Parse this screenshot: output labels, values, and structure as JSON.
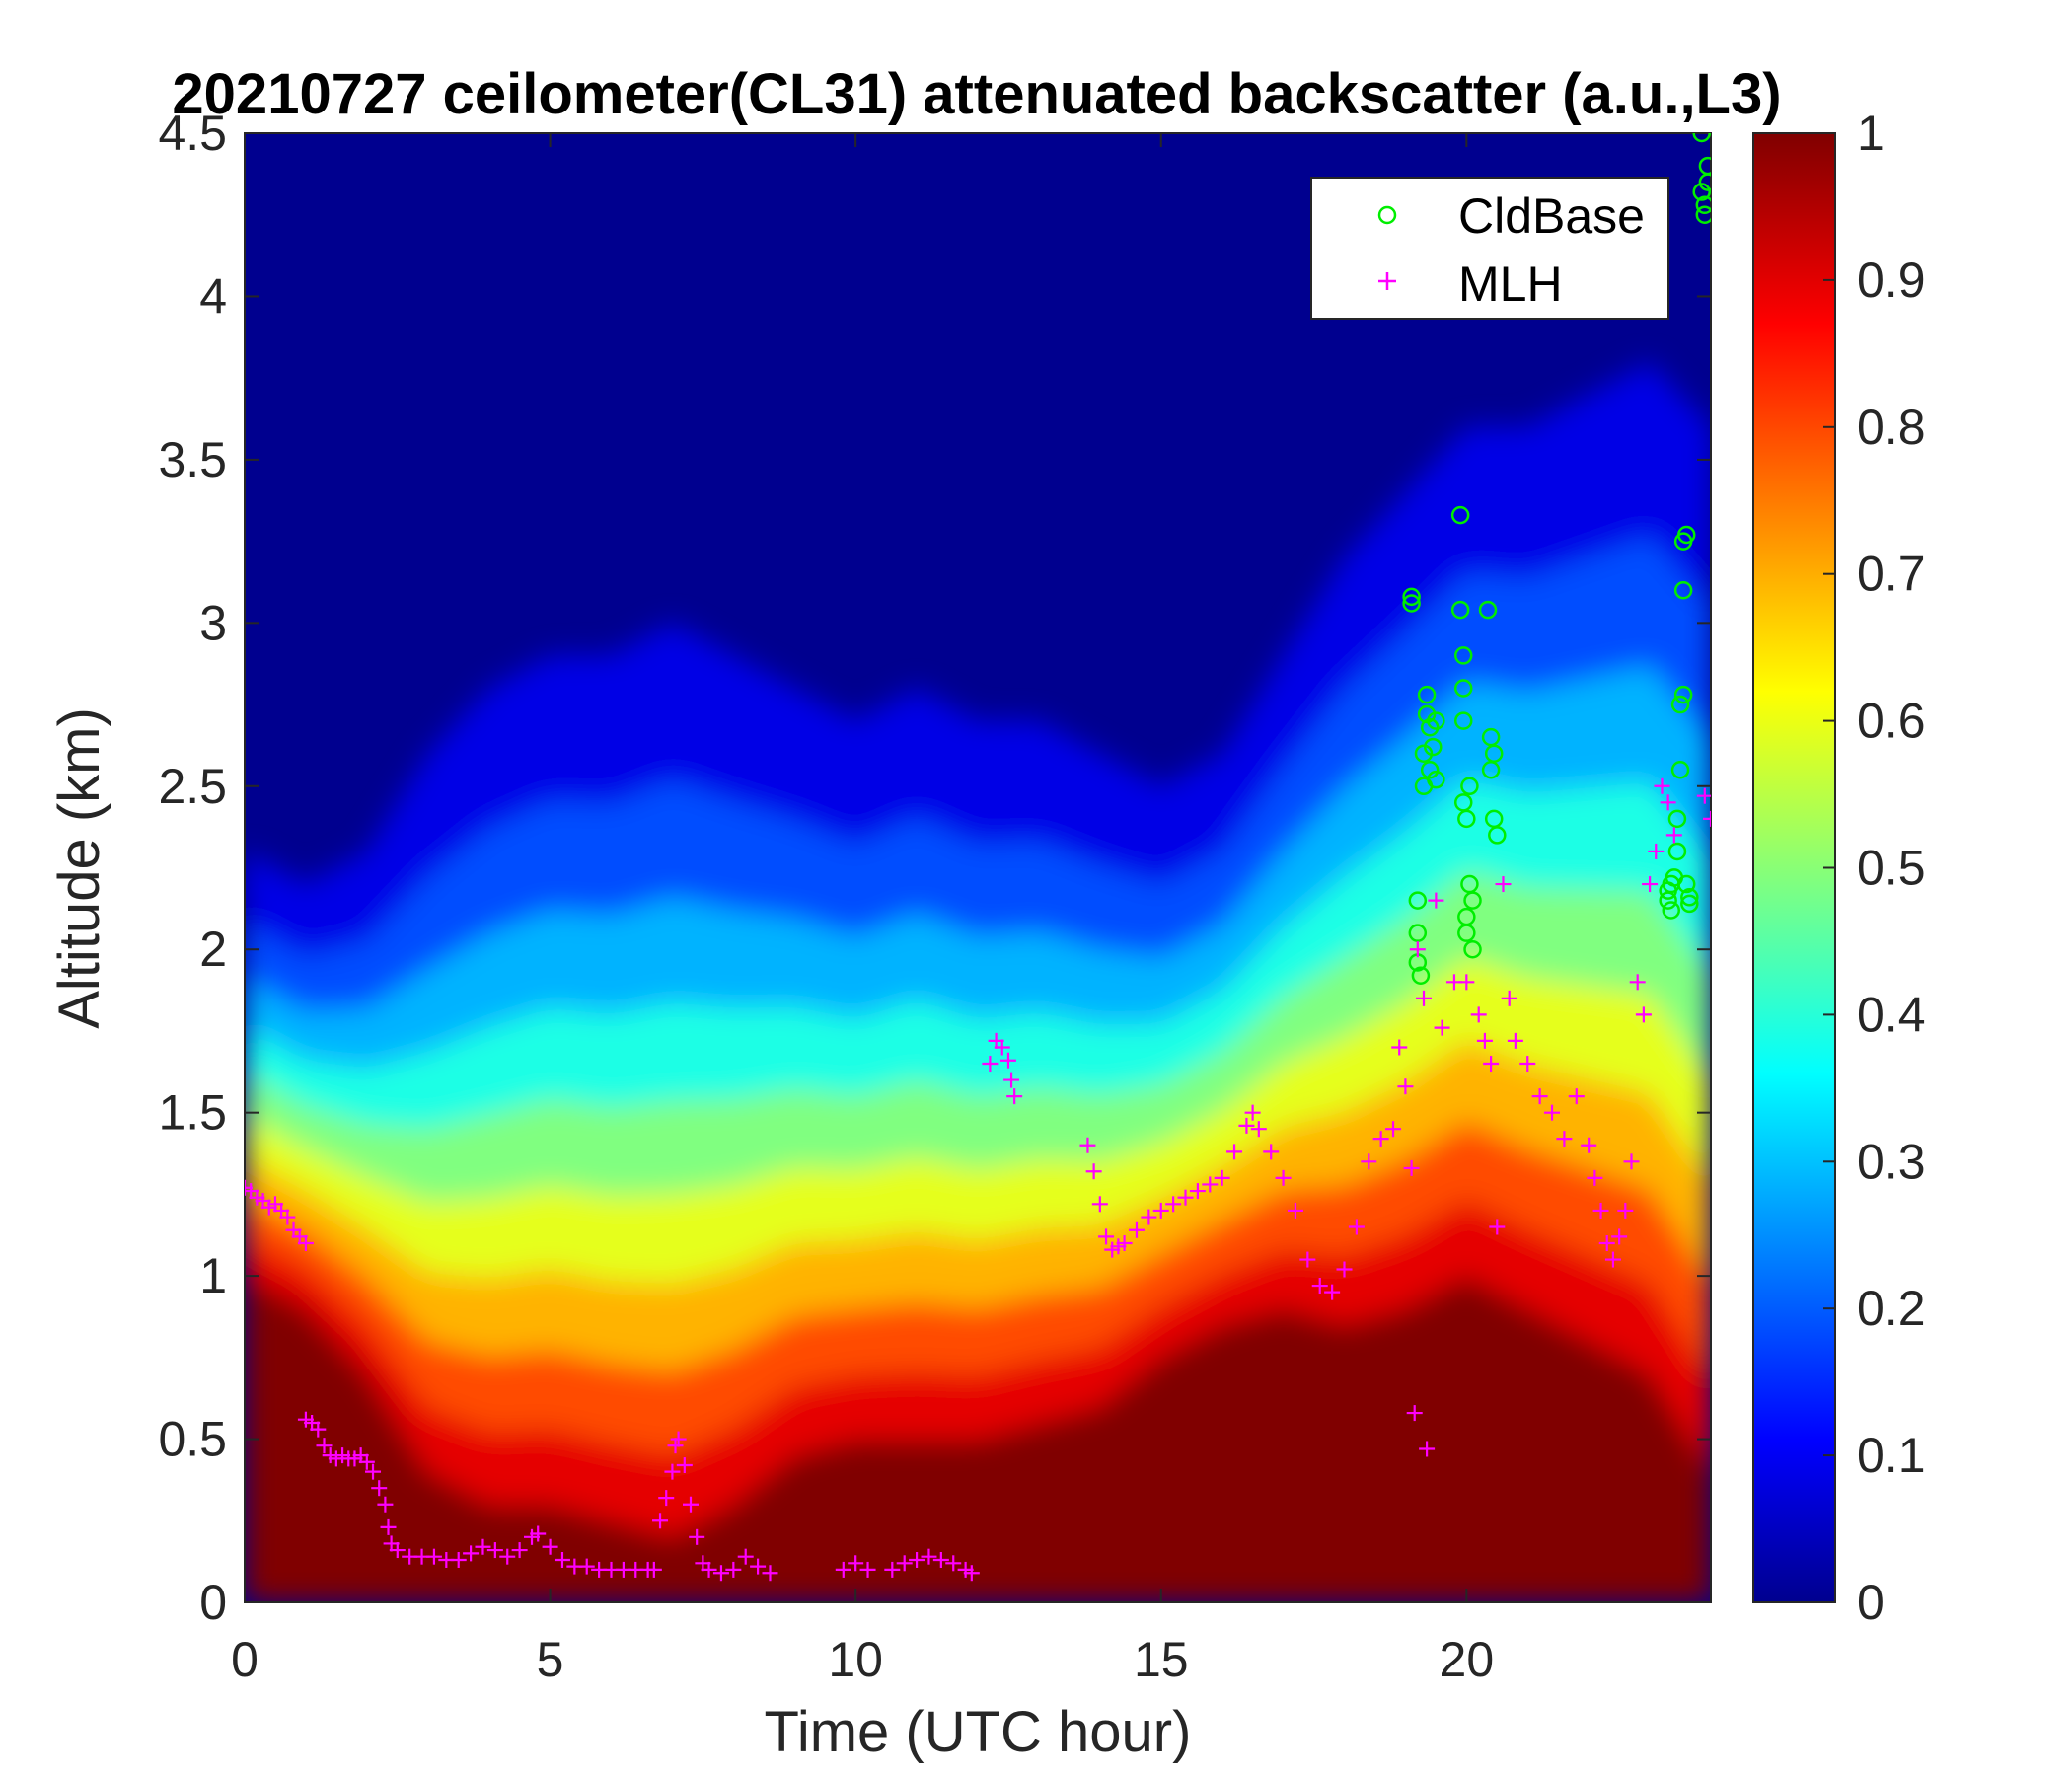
{
  "chart_data": {
    "type": "heatmap",
    "title": "20210727 ceilometer(CL31) attenuated backscatter (a.u.,L3)",
    "xlabel": "Time (UTC hour)",
    "ylabel": "Altitude (km)",
    "xlim": [
      0,
      24
    ],
    "ylim": [
      0,
      4.5
    ],
    "x_ticks": [
      "0",
      "5",
      "10",
      "15",
      "20"
    ],
    "y_ticks": [
      "0",
      "0.5",
      "1",
      "1.5",
      "2",
      "2.5",
      "3",
      "3.5",
      "4",
      "4.5"
    ],
    "colorbar": {
      "colormap": "jet",
      "range": [
        0,
        1
      ],
      "ticks": [
        "0",
        "0.1",
        "0.2",
        "0.3",
        "0.4",
        "0.5",
        "0.6",
        "0.7",
        "0.8",
        "0.9",
        "1"
      ]
    },
    "legend_position": "top-right",
    "backscatter_profile": {
      "description_keys": [
        "t",
        "saturated_top_km",
        "gradient_top_km"
      ],
      "t": [
        0,
        1,
        2,
        3,
        4,
        5,
        6,
        7,
        8,
        9,
        10,
        11,
        12,
        13,
        14,
        15,
        16,
        17,
        18,
        19,
        20,
        21,
        22,
        23,
        24
      ],
      "saturated_top_km": [
        1.0,
        0.9,
        0.7,
        0.4,
        0.3,
        0.3,
        0.25,
        0.2,
        0.3,
        0.45,
        0.5,
        0.5,
        0.5,
        0.55,
        0.6,
        0.75,
        0.85,
        0.9,
        0.85,
        0.9,
        1.0,
        0.9,
        0.8,
        0.7,
        0.4
      ],
      "gradient_top_km": [
        2.3,
        2.2,
        2.3,
        2.6,
        2.8,
        2.9,
        2.9,
        3.0,
        2.9,
        2.8,
        2.7,
        2.8,
        2.7,
        2.7,
        2.6,
        2.5,
        2.6,
        2.9,
        3.2,
        3.4,
        3.6,
        3.6,
        3.7,
        3.8,
        3.6
      ]
    },
    "series": [
      {
        "name": "CldBase",
        "marker": "circle",
        "color": "#00ee00",
        "points": [
          [
            19.1,
            3.08
          ],
          [
            19.1,
            3.06
          ],
          [
            19.2,
            2.15
          ],
          [
            19.2,
            2.05
          ],
          [
            19.2,
            1.96
          ],
          [
            19.25,
            1.92
          ],
          [
            19.3,
            2.5
          ],
          [
            19.3,
            2.6
          ],
          [
            19.35,
            2.72
          ],
          [
            19.35,
            2.78
          ],
          [
            19.4,
            2.68
          ],
          [
            19.4,
            2.55
          ],
          [
            19.45,
            2.62
          ],
          [
            19.5,
            2.52
          ],
          [
            19.5,
            2.7
          ],
          [
            19.9,
            3.33
          ],
          [
            19.9,
            3.04
          ],
          [
            19.95,
            2.9
          ],
          [
            19.95,
            2.8
          ],
          [
            19.95,
            2.7
          ],
          [
            19.95,
            2.45
          ],
          [
            20.0,
            2.4
          ],
          [
            20.0,
            2.1
          ],
          [
            20.0,
            2.05
          ],
          [
            20.05,
            2.5
          ],
          [
            20.05,
            2.2
          ],
          [
            20.1,
            2.15
          ],
          [
            20.1,
            2.0
          ],
          [
            20.35,
            3.04
          ],
          [
            20.4,
            2.65
          ],
          [
            20.4,
            2.55
          ],
          [
            20.45,
            2.6
          ],
          [
            20.45,
            2.4
          ],
          [
            20.5,
            2.35
          ],
          [
            23.3,
            2.18
          ],
          [
            23.3,
            2.15
          ],
          [
            23.35,
            2.2
          ],
          [
            23.35,
            2.12
          ],
          [
            23.4,
            2.22
          ],
          [
            23.45,
            2.3
          ],
          [
            23.45,
            2.4
          ],
          [
            23.5,
            2.55
          ],
          [
            23.5,
            2.75
          ],
          [
            23.55,
            2.78
          ],
          [
            23.55,
            3.1
          ],
          [
            23.55,
            3.25
          ],
          [
            23.6,
            3.27
          ],
          [
            23.6,
            2.2
          ],
          [
            23.65,
            2.16
          ],
          [
            23.65,
            2.14
          ],
          [
            23.85,
            4.5
          ],
          [
            23.85,
            4.32
          ],
          [
            23.9,
            4.28
          ],
          [
            23.9,
            4.25
          ],
          [
            23.95,
            4.4
          ],
          [
            23.95,
            4.35
          ]
        ]
      },
      {
        "name": "MLH",
        "marker": "plus",
        "color": "#ff00ff",
        "points": [
          [
            0.0,
            1.27
          ],
          [
            0.1,
            1.26
          ],
          [
            0.2,
            1.24
          ],
          [
            0.3,
            1.23
          ],
          [
            0.4,
            1.21
          ],
          [
            0.5,
            1.22
          ],
          [
            0.6,
            1.2
          ],
          [
            0.7,
            1.18
          ],
          [
            0.8,
            1.14
          ],
          [
            0.9,
            1.12
          ],
          [
            1.0,
            1.1
          ],
          [
            1.0,
            0.56
          ],
          [
            1.1,
            0.55
          ],
          [
            1.2,
            0.53
          ],
          [
            1.3,
            0.48
          ],
          [
            1.4,
            0.45
          ],
          [
            1.5,
            0.44
          ],
          [
            1.6,
            0.45
          ],
          [
            1.7,
            0.44
          ],
          [
            1.8,
            0.44
          ],
          [
            1.9,
            0.45
          ],
          [
            2.0,
            0.43
          ],
          [
            2.1,
            0.4
          ],
          [
            2.2,
            0.35
          ],
          [
            2.3,
            0.3
          ],
          [
            2.35,
            0.23
          ],
          [
            2.4,
            0.18
          ],
          [
            2.5,
            0.16
          ],
          [
            2.7,
            0.14
          ],
          [
            2.9,
            0.14
          ],
          [
            3.1,
            0.14
          ],
          [
            3.3,
            0.13
          ],
          [
            3.5,
            0.13
          ],
          [
            3.7,
            0.15
          ],
          [
            3.9,
            0.17
          ],
          [
            4.1,
            0.16
          ],
          [
            4.3,
            0.14
          ],
          [
            4.5,
            0.16
          ],
          [
            4.7,
            0.2
          ],
          [
            4.8,
            0.21
          ],
          [
            5.0,
            0.17
          ],
          [
            5.2,
            0.13
          ],
          [
            5.4,
            0.11
          ],
          [
            5.6,
            0.11
          ],
          [
            5.8,
            0.1
          ],
          [
            6.0,
            0.1
          ],
          [
            6.2,
            0.1
          ],
          [
            6.4,
            0.1
          ],
          [
            6.6,
            0.1
          ],
          [
            6.7,
            0.1
          ],
          [
            6.8,
            0.25
          ],
          [
            6.9,
            0.32
          ],
          [
            7.0,
            0.4
          ],
          [
            7.05,
            0.48
          ],
          [
            7.1,
            0.5
          ],
          [
            7.2,
            0.42
          ],
          [
            7.3,
            0.3
          ],
          [
            7.4,
            0.2
          ],
          [
            7.5,
            0.12
          ],
          [
            7.6,
            0.1
          ],
          [
            7.8,
            0.09
          ],
          [
            8.0,
            0.1
          ],
          [
            8.2,
            0.14
          ],
          [
            8.4,
            0.11
          ],
          [
            8.6,
            0.09
          ],
          [
            9.8,
            0.1
          ],
          [
            10.0,
            0.12
          ],
          [
            10.2,
            0.1
          ],
          [
            10.6,
            0.1
          ],
          [
            10.8,
            0.12
          ],
          [
            11.0,
            0.13
          ],
          [
            11.2,
            0.14
          ],
          [
            11.4,
            0.13
          ],
          [
            11.6,
            0.12
          ],
          [
            11.8,
            0.1
          ],
          [
            11.9,
            0.09
          ],
          [
            12.2,
            1.65
          ],
          [
            12.3,
            1.72
          ],
          [
            12.4,
            1.7
          ],
          [
            12.5,
            1.66
          ],
          [
            12.55,
            1.6
          ],
          [
            12.6,
            1.55
          ],
          [
            13.8,
            1.4
          ],
          [
            13.9,
            1.32
          ],
          [
            14.0,
            1.22
          ],
          [
            14.1,
            1.12
          ],
          [
            14.2,
            1.08
          ],
          [
            14.3,
            1.09
          ],
          [
            14.4,
            1.1
          ],
          [
            14.6,
            1.14
          ],
          [
            14.8,
            1.18
          ],
          [
            15.0,
            1.2
          ],
          [
            15.2,
            1.22
          ],
          [
            15.4,
            1.24
          ],
          [
            15.6,
            1.26
          ],
          [
            15.8,
            1.28
          ],
          [
            16.0,
            1.3
          ],
          [
            16.2,
            1.38
          ],
          [
            16.4,
            1.46
          ],
          [
            16.5,
            1.5
          ],
          [
            16.6,
            1.45
          ],
          [
            16.8,
            1.38
          ],
          [
            17.0,
            1.3
          ],
          [
            17.2,
            1.2
          ],
          [
            17.4,
            1.05
          ],
          [
            17.6,
            0.97
          ],
          [
            17.8,
            0.95
          ],
          [
            18.0,
            1.02
          ],
          [
            18.2,
            1.15
          ],
          [
            18.4,
            1.35
          ],
          [
            18.6,
            1.42
          ],
          [
            18.8,
            1.45
          ],
          [
            18.9,
            1.7
          ],
          [
            19.0,
            1.58
          ],
          [
            19.1,
            1.33
          ],
          [
            19.15,
            0.58
          ],
          [
            19.35,
            0.47
          ],
          [
            19.2,
            2.0
          ],
          [
            19.3,
            1.85
          ],
          [
            19.5,
            2.15
          ],
          [
            19.6,
            1.76
          ],
          [
            19.8,
            1.9
          ],
          [
            20.0,
            1.9
          ],
          [
            20.2,
            1.8
          ],
          [
            20.3,
            1.72
          ],
          [
            20.4,
            1.65
          ],
          [
            20.5,
            1.15
          ],
          [
            20.6,
            2.2
          ],
          [
            20.7,
            1.85
          ],
          [
            20.8,
            1.72
          ],
          [
            21.0,
            1.65
          ],
          [
            21.2,
            1.55
          ],
          [
            21.4,
            1.5
          ],
          [
            21.6,
            1.42
          ],
          [
            21.8,
            1.55
          ],
          [
            22.0,
            1.4
          ],
          [
            22.1,
            1.3
          ],
          [
            22.2,
            1.2
          ],
          [
            22.3,
            1.1
          ],
          [
            22.4,
            1.05
          ],
          [
            22.5,
            1.12
          ],
          [
            22.6,
            1.2
          ],
          [
            22.7,
            1.35
          ],
          [
            22.8,
            1.9
          ],
          [
            22.9,
            1.8
          ],
          [
            23.0,
            2.2
          ],
          [
            23.1,
            2.3
          ],
          [
            23.2,
            2.5
          ],
          [
            23.3,
            2.45
          ],
          [
            23.4,
            2.35
          ],
          [
            23.9,
            2.47
          ],
          [
            24.0,
            2.4
          ]
        ]
      }
    ]
  }
}
